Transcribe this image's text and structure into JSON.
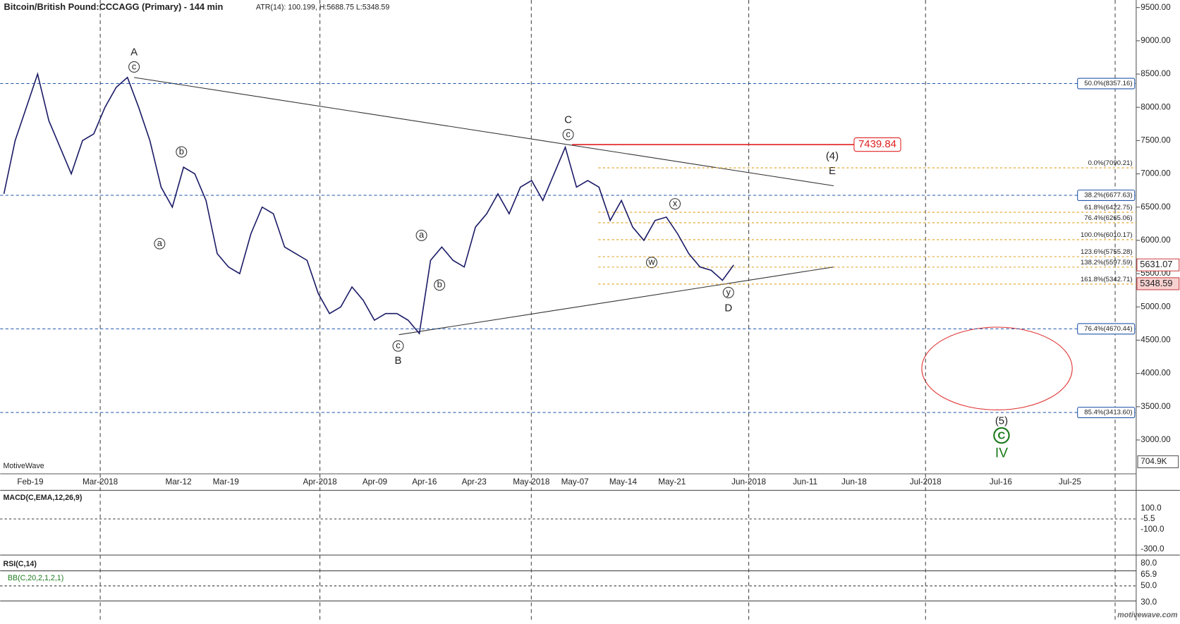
{
  "header": {
    "title": "Bitcoin/British Pound:CCCAGG (Primary) - 144 min",
    "stats": "ATR(14): 100.199, H:5688.75  L:5348.59"
  },
  "chart_data": {
    "type": "line",
    "color": "#1a1a66",
    "x_labels": [
      "Feb-19",
      "Mar-2018",
      "Mar-12",
      "Mar-19",
      "Apr-2018",
      "Apr-09",
      "Apr-16",
      "Apr-23",
      "May-2018",
      "May-07",
      "May-14",
      "May-21",
      "Jun-2018",
      "Jun-11",
      "Jun-18",
      "Jul-2018",
      "Jul-16",
      "Jul-25"
    ],
    "values": [
      6700,
      7500,
      8000,
      8500,
      7800,
      7400,
      7000,
      7500,
      7600,
      8000,
      8300,
      8450,
      8000,
      7500,
      6800,
      6500,
      7100,
      7000,
      6600,
      5800,
      5600,
      5500,
      6100,
      6500,
      6400,
      5900,
      5800,
      5700,
      5200,
      4900,
      5000,
      5300,
      5100,
      4800,
      4900,
      4900,
      4800,
      4600,
      5700,
      5900,
      5700,
      5600,
      6200,
      6400,
      6700,
      6400,
      6800,
      6900,
      6600,
      7000,
      7400,
      6800,
      6900,
      6800,
      6300,
      6600,
      6200,
      6000,
      6300,
      6350,
      6100,
      5800,
      5600,
      5550,
      5400,
      5630
    ],
    "ylim": [
      2800,
      9700
    ],
    "yticks": [
      {
        "value": 9500,
        "label": "9500.00"
      },
      {
        "value": 9000,
        "label": "9000.00"
      },
      {
        "value": 8500,
        "label": "8500.00"
      },
      {
        "value": 8000,
        "label": "8000.00"
      },
      {
        "value": 7500,
        "label": "7500.00"
      },
      {
        "value": 7000,
        "label": "7000.00"
      },
      {
        "value": 6500,
        "label": "6500.00"
      },
      {
        "value": 6000,
        "label": "6000.00"
      },
      {
        "value": 5500,
        "label": "5500.00"
      },
      {
        "value": 5000,
        "label": "5000.00"
      },
      {
        "value": 4500,
        "label": "4500.00"
      },
      {
        "value": 4000,
        "label": "4000.00"
      },
      {
        "value": 3500,
        "label": "3500.00"
      },
      {
        "value": 3000,
        "label": "3000.00"
      }
    ],
    "levels": [
      {
        "value": 8357.16,
        "label": "50.0%(8357.16)",
        "color": "#2255aa"
      },
      {
        "value": 7090.21,
        "label": "0.0%(7090.21)",
        "color": "#e0a020"
      },
      {
        "value": 6677.63,
        "label": "38.2%(6677.63)",
        "color": "#2255aa"
      },
      {
        "value": 6422.75,
        "label": "61.8%(6422.75)",
        "color": "#e0a020"
      },
      {
        "value": 6265.06,
        "label": "76.4%(6265.06)",
        "color": "#e0a020"
      },
      {
        "value": 6010.17,
        "label": "100.0%(6010.17)",
        "color": "#e0a020"
      },
      {
        "value": 5755.28,
        "label": "123.6%(5755.28)",
        "color": "#e0a020"
      },
      {
        "value": 5597.59,
        "label": "138.2%(5597.59)",
        "color": "#e0a020"
      },
      {
        "value": 5342.71,
        "label": "161.8%(5342.71)",
        "color": "#e0a020"
      },
      {
        "value": 4670.44,
        "label": "76.4%(4670.44)",
        "color": "#2255aa"
      },
      {
        "value": 3413.6,
        "label": "85.4%(3413.60)",
        "color": "#2255aa"
      }
    ],
    "target": {
      "value": 7439.84,
      "label": "7439.84"
    },
    "last": {
      "value": 5631.07,
      "label": "5631.07"
    },
    "low": {
      "value": 5348.59,
      "label": "5348.59"
    }
  },
  "waves": [
    "A",
    "c",
    "b",
    "a",
    "c",
    "B",
    "a",
    "b",
    "C",
    "c",
    "x",
    "w",
    "y",
    "D",
    "(4)",
    "E",
    "(5)",
    "C",
    "IV"
  ],
  "volume": {
    "label": "704.9K",
    "watermark": "MotiveWave"
  },
  "macd": {
    "title": "MACD(C,EMA,12,26,9)",
    "ticks": [
      "100.0",
      "-5.5",
      "-100.0",
      "-300.0"
    ]
  },
  "rsi": {
    "title": "RSI(C,14)",
    "bb": "BB(C,20,2,1,2,1)",
    "ticks": [
      "80.0",
      "65.9",
      "50.0",
      "30.0"
    ]
  },
  "footer": "motivewave.com"
}
